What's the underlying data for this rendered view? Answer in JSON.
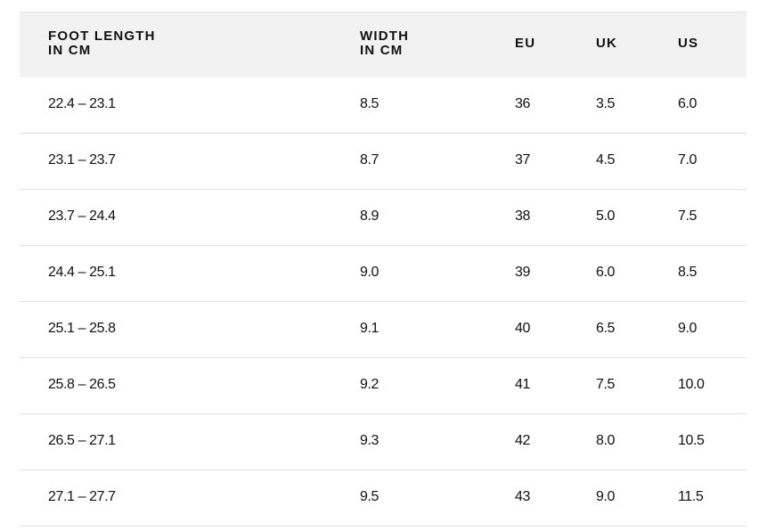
{
  "table": {
    "header": [
      [
        "FOOT LENGTH",
        "IN CM"
      ],
      [
        "WIDTH",
        "IN CM"
      ],
      [
        "EU"
      ],
      [
        "UK"
      ],
      [
        "US"
      ]
    ],
    "rows": [
      [
        "22.4 – 23.1",
        "8.5",
        "36",
        "3.5",
        "6.0"
      ],
      [
        "23.1 – 23.7",
        "8.7",
        "37",
        "4.5",
        "7.0"
      ],
      [
        "23.7 – 24.4",
        "8.9",
        "38",
        "5.0",
        "7.5"
      ],
      [
        "24.4 – 25.1",
        "9.0",
        "39",
        "6.0",
        "8.5"
      ],
      [
        "25.1 – 25.8",
        "9.1",
        "40",
        "6.5",
        "9.0"
      ],
      [
        "25.8 – 26.5",
        "9.2",
        "41",
        "7.5",
        "10.0"
      ],
      [
        "26.5 – 27.1",
        "9.3",
        "42",
        "8.0",
        "10.5"
      ],
      [
        "27.1 – 27.7",
        "9.5",
        "43",
        "9.0",
        "11.5"
      ]
    ]
  }
}
